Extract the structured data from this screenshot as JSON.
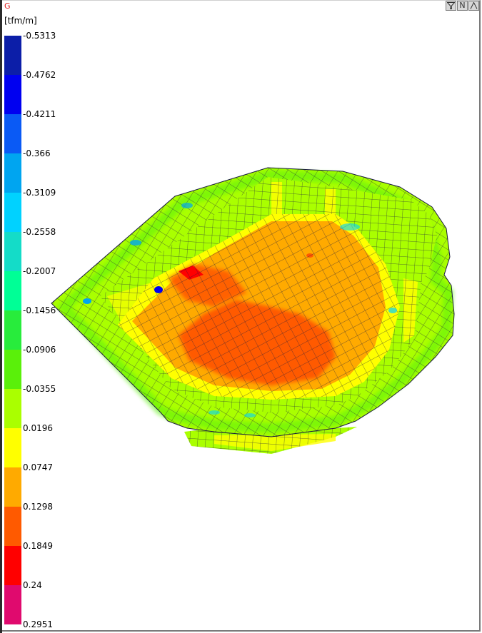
{
  "view": {
    "title": "G",
    "unit": "[tfm/m]"
  },
  "toolbar": {
    "buttons": [
      {
        "name": "filter-button",
        "icon": "filter-icon",
        "label": ""
      },
      {
        "name": "normal-view-button",
        "icon": "n-icon",
        "label": "N"
      },
      {
        "name": "collapse-button",
        "icon": "chevron-up-icon",
        "label": "^"
      }
    ]
  },
  "legend": {
    "labels": [
      "-0.5313",
      "-0.4762",
      "-0.4211",
      "-0.366",
      "-0.3109",
      "-0.2558",
      "-0.2007",
      "-0.1456",
      "-0.0906",
      "-0.0355",
      "0.0196",
      "0.0747",
      "0.1298",
      "0.1849",
      "0.24",
      "0.2951"
    ],
    "colors": [
      "#0c1ea8",
      "#0000f0",
      "#0a5af5",
      "#00a5f0",
      "#00d2ff",
      "#14dcc8",
      "#00ff96",
      "#28ec3c",
      "#5af00a",
      "#aaff00",
      "#ffff00",
      "#ffaa00",
      "#ff5a00",
      "#ff0000",
      "#e00a6e"
    ]
  },
  "chart_data": {
    "type": "heatmap",
    "title": "G",
    "unit": "[tfm/m]",
    "description": "3D finite-element contour plot of a pool-shaped slab/wall structure showing moment distribution",
    "scale": {
      "min": -0.5313,
      "max": 0.2951,
      "ticks": [
        -0.5313,
        -0.4762,
        -0.4211,
        -0.366,
        -0.3109,
        -0.2558,
        -0.2007,
        -0.1456,
        -0.0906,
        -0.0355,
        0.0196,
        0.0747,
        0.1298,
        0.1849,
        0.24,
        0.2951
      ]
    },
    "regions": [
      {
        "area": "floor center",
        "range": "0.1298 to 0.1849"
      },
      {
        "area": "floor surroundings",
        "range": "0.0747 to 0.1298"
      },
      {
        "area": "floor left corner hotspot",
        "range": "0.1849 to 0.24"
      },
      {
        "area": "walls and rim",
        "range": "-0.0906 to 0.0196"
      },
      {
        "area": "wall-floor junctions",
        "range": "-0.3109 to -0.1456"
      },
      {
        "area": "left wall corner local minimum",
        "range": "-0.5313 to -0.4211"
      }
    ]
  }
}
